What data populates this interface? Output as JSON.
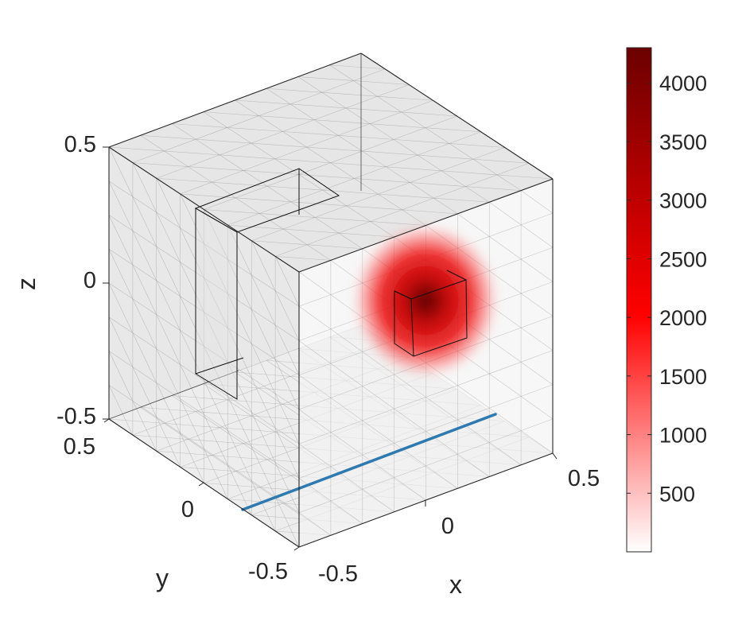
{
  "chart_data": {
    "type": "3d-volume",
    "xlabel": "x",
    "ylabel": "y",
    "zlabel": "z",
    "xlim": [
      -0.5,
      0.5
    ],
    "ylim": [
      -0.5,
      0.5
    ],
    "zlim": [
      -0.5,
      0.5
    ],
    "x_ticks": [
      "-0.5",
      "0",
      "0.5"
    ],
    "y_ticks": [
      "-0.5",
      "0",
      "0.5"
    ],
    "z_ticks": [
      "-0.5",
      "0",
      "0.5"
    ],
    "grid": true,
    "colorbar": {
      "placement": "right",
      "range": [
        0,
        4300
      ],
      "ticks": [
        "500",
        "1000",
        "1500",
        "2000",
        "2500",
        "3000",
        "3500",
        "4000"
      ],
      "colors": [
        "#ffffff",
        "#ff0000",
        "#6b0000"
      ]
    },
    "source_peak_value": 4300,
    "line_color": "#2e7ab0",
    "cube_color": "#d9d9d9"
  }
}
